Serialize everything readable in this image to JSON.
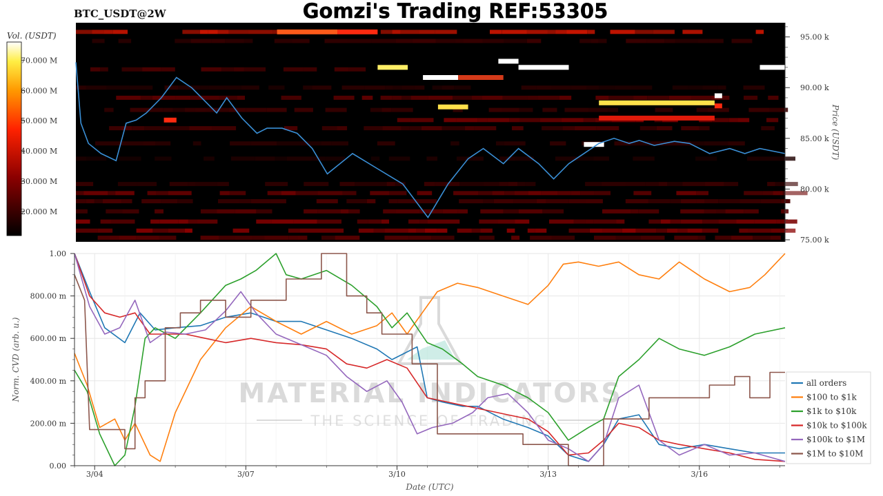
{
  "header": {
    "symbol": "BTC_USDT@2W",
    "title": "Gomzi's Trading REF:53305"
  },
  "watermark": {
    "line1": "MATERIAL INDICATORS",
    "line2": "THE SCIENCE OF TRADING"
  },
  "colors": {
    "heat_bg": "#000000",
    "price_line": "#3a8fd6",
    "all_orders": "#1f77b4",
    "100_1k": "#ff7f0e",
    "1k_10k": "#2ca02c",
    "10k_100k": "#d62728",
    "100k_1m": "#9467bd",
    "1m_10m": "#8c564b"
  },
  "chart_data": [
    {
      "type": "heatmap",
      "title": "Gomzi's Trading REF:53305",
      "ylabel": "Price (USDT)",
      "colorbar_label": "Vol. (USDT)",
      "colorbar_ticks": [
        "70.000 M",
        "60.000 M",
        "50.000 M",
        "40.000 M",
        "30.000 M",
        "20.000 M"
      ],
      "colorbar_values": [
        70,
        60,
        50,
        40,
        30,
        20
      ],
      "colorbar_range": [
        12,
        76
      ],
      "yticks": [
        "95.00 k",
        "90.00 k",
        "85.00 k",
        "80.00 k",
        "75.00 k"
      ],
      "ytick_values": [
        95,
        90,
        85,
        80,
        75
      ],
      "ylim": [
        74.8,
        96.4
      ],
      "x_range_days": [
        0,
        14.1
      ],
      "price_series": {
        "name": "BTC_USDT",
        "x": [
          0,
          0.1,
          0.25,
          0.5,
          0.8,
          1.0,
          1.2,
          1.4,
          1.7,
          2.0,
          2.3,
          2.6,
          2.8,
          3.0,
          3.3,
          3.6,
          3.8,
          4.1,
          4.4,
          4.7,
          5.0,
          5.5,
          6.0,
          6.5,
          7.0,
          7.4,
          7.8,
          8.1,
          8.5,
          8.8,
          9.2,
          9.5,
          9.8,
          10.1,
          10.4,
          10.7,
          11.0,
          11.2,
          11.5,
          11.9,
          12.2,
          12.6,
          13.0,
          13.3,
          13.6,
          14.1
        ],
        "y": [
          92.5,
          86.5,
          84.5,
          83.5,
          82.8,
          86.5,
          86.8,
          87.5,
          89.0,
          91.0,
          90.0,
          88.5,
          87.5,
          89.0,
          87.0,
          85.5,
          86.0,
          86.0,
          85.5,
          84.0,
          81.5,
          83.5,
          82.0,
          80.5,
          77.2,
          80.5,
          83.0,
          84.0,
          82.5,
          84.0,
          82.5,
          81.0,
          82.5,
          83.5,
          84.5,
          85.0,
          84.5,
          84.8,
          84.3,
          84.7,
          84.5,
          83.5,
          84.0,
          83.5,
          84.0,
          83.5
        ]
      }
    },
    {
      "type": "line",
      "xlabel": "Date (UTC)",
      "ylabel": "Norm. CVD (arb. u.)",
      "categories": [
        "3/04",
        "3/07",
        "3/10",
        "3/13",
        "3/16"
      ],
      "category_positions": [
        0.4,
        3.4,
        6.4,
        9.4,
        12.4
      ],
      "xlim": [
        0,
        14.1
      ],
      "ylim": [
        0,
        1
      ],
      "yticks": [
        "1.00",
        "800.00 m",
        "600.00 m",
        "400.00 m",
        "200.00 m",
        "0.00"
      ],
      "ytick_values": [
        1,
        0.8,
        0.6,
        0.4,
        0.2,
        0
      ],
      "grid": true,
      "legend_position": "right",
      "series": [
        {
          "name": "all orders",
          "color_key": "all_orders",
          "x": [
            0,
            0.3,
            0.6,
            1.0,
            1.3,
            1.6,
            2.0,
            2.5,
            3.0,
            3.5,
            4.0,
            4.5,
            5.0,
            5.5,
            6.0,
            6.3,
            6.8,
            7.0,
            7.3,
            7.7,
            8.0,
            8.5,
            9.0,
            9.4,
            9.8,
            10.2,
            10.5,
            10.8,
            11.2,
            11.6,
            12.0,
            12.5,
            13.0,
            13.5,
            14.1
          ],
          "y": [
            1.0,
            0.82,
            0.65,
            0.58,
            0.72,
            0.64,
            0.65,
            0.66,
            0.7,
            0.72,
            0.68,
            0.68,
            0.64,
            0.6,
            0.55,
            0.5,
            0.56,
            0.32,
            0.3,
            0.28,
            0.28,
            0.22,
            0.18,
            0.14,
            0.05,
            0.02,
            0.1,
            0.22,
            0.24,
            0.1,
            0.08,
            0.1,
            0.08,
            0.06,
            0.06
          ]
        },
        {
          "name": "$100 to $1k",
          "color_key": "100_1k",
          "x": [
            0,
            0.25,
            0.5,
            0.8,
            1.0,
            1.2,
            1.5,
            1.7,
            2.0,
            2.5,
            3.0,
            3.5,
            4.0,
            4.5,
            5.0,
            5.5,
            6.0,
            6.3,
            6.6,
            6.9,
            7.2,
            7.6,
            8.0,
            8.5,
            9.0,
            9.4,
            9.7,
            10.0,
            10.4,
            10.8,
            11.2,
            11.6,
            12.0,
            12.5,
            13.0,
            13.4,
            13.7,
            14.1
          ],
          "y": [
            0.53,
            0.38,
            0.18,
            0.22,
            0.12,
            0.2,
            0.05,
            0.02,
            0.25,
            0.5,
            0.65,
            0.75,
            0.68,
            0.62,
            0.68,
            0.62,
            0.66,
            0.72,
            0.62,
            0.72,
            0.82,
            0.86,
            0.84,
            0.8,
            0.76,
            0.85,
            0.95,
            0.96,
            0.94,
            0.96,
            0.9,
            0.88,
            0.96,
            0.88,
            0.82,
            0.84,
            0.9,
            1.0
          ]
        },
        {
          "name": "$1k to $10k",
          "color_key": "1k_10k",
          "x": [
            0,
            0.25,
            0.5,
            0.8,
            1.0,
            1.2,
            1.4,
            1.6,
            2.0,
            2.5,
            3.0,
            3.3,
            3.6,
            4.0,
            4.2,
            4.5,
            5.0,
            5.5,
            6.0,
            6.3,
            6.6,
            7.0,
            7.3,
            7.7,
            8.0,
            8.5,
            9.0,
            9.4,
            9.8,
            10.2,
            10.5,
            10.8,
            11.2,
            11.6,
            12.0,
            12.5,
            13.0,
            13.5,
            14.1
          ],
          "y": [
            0.45,
            0.35,
            0.15,
            0.0,
            0.05,
            0.28,
            0.6,
            0.65,
            0.6,
            0.72,
            0.85,
            0.88,
            0.92,
            1.0,
            0.9,
            0.88,
            0.92,
            0.85,
            0.75,
            0.65,
            0.72,
            0.58,
            0.55,
            0.48,
            0.42,
            0.38,
            0.32,
            0.25,
            0.12,
            0.18,
            0.22,
            0.42,
            0.5,
            0.6,
            0.55,
            0.52,
            0.56,
            0.62,
            0.65
          ]
        },
        {
          "name": "$10k to $100k",
          "color_key": "10k_100k",
          "x": [
            0,
            0.3,
            0.6,
            0.9,
            1.2,
            1.5,
            1.8,
            2.2,
            2.6,
            3.0,
            3.5,
            4.0,
            4.5,
            5.0,
            5.4,
            5.8,
            6.2,
            6.6,
            7.0,
            7.4,
            7.8,
            8.2,
            8.6,
            9.0,
            9.4,
            9.8,
            10.2,
            10.5,
            10.8,
            11.2,
            11.6,
            12.0,
            12.5,
            13.0,
            13.5,
            14.1
          ],
          "y": [
            1.0,
            0.8,
            0.72,
            0.7,
            0.72,
            0.62,
            0.62,
            0.62,
            0.6,
            0.58,
            0.6,
            0.58,
            0.57,
            0.55,
            0.48,
            0.46,
            0.5,
            0.46,
            0.32,
            0.3,
            0.28,
            0.26,
            0.24,
            0.22,
            0.16,
            0.05,
            0.06,
            0.12,
            0.2,
            0.18,
            0.12,
            0.1,
            0.08,
            0.06,
            0.03,
            0.02
          ]
        },
        {
          "name": "$100k to $1M",
          "color_key": "100k_1m",
          "x": [
            0,
            0.3,
            0.6,
            0.9,
            1.2,
            1.5,
            1.8,
            2.2,
            2.6,
            3.0,
            3.3,
            3.6,
            4.0,
            4.5,
            5.0,
            5.4,
            5.8,
            6.2,
            6.5,
            6.8,
            7.1,
            7.5,
            7.9,
            8.2,
            8.6,
            9.0,
            9.4,
            9.8,
            10.2,
            10.5,
            10.8,
            11.2,
            11.6,
            12.0,
            12.5,
            13.0,
            13.5,
            14.1
          ],
          "y": [
            1.0,
            0.75,
            0.62,
            0.65,
            0.78,
            0.58,
            0.63,
            0.62,
            0.64,
            0.73,
            0.82,
            0.72,
            0.62,
            0.57,
            0.52,
            0.42,
            0.35,
            0.4,
            0.3,
            0.15,
            0.18,
            0.2,
            0.25,
            0.32,
            0.34,
            0.25,
            0.12,
            0.08,
            0.02,
            0.1,
            0.32,
            0.38,
            0.12,
            0.05,
            0.1,
            0.05,
            0.06,
            0.02
          ]
        },
        {
          "name": "$1M to $10M",
          "color_key": "1m_10m",
          "x": [
            0,
            0.2,
            0.3,
            1.0,
            1.0,
            1.2,
            1.2,
            1.4,
            1.4,
            1.8,
            1.8,
            2.1,
            2.1,
            2.5,
            2.5,
            3.0,
            3.0,
            3.5,
            3.5,
            4.2,
            4.2,
            4.9,
            4.9,
            5.4,
            5.4,
            5.8,
            5.8,
            6.1,
            6.1,
            6.7,
            6.7,
            7.2,
            7.2,
            8.9,
            8.9,
            9.8,
            9.8,
            10.5,
            10.5,
            11.4,
            11.4,
            12.6,
            12.6,
            13.1,
            13.1,
            13.4,
            13.4,
            13.8,
            13.8,
            14.1
          ],
          "y": [
            0.9,
            0.78,
            0.17,
            0.17,
            0.08,
            0.08,
            0.32,
            0.32,
            0.4,
            0.4,
            0.65,
            0.65,
            0.72,
            0.72,
            0.78,
            0.78,
            0.7,
            0.7,
            0.78,
            0.78,
            0.88,
            0.88,
            1.0,
            1.0,
            0.8,
            0.8,
            0.72,
            0.72,
            0.62,
            0.62,
            0.48,
            0.48,
            0.15,
            0.15,
            0.1,
            0.1,
            0.0,
            0.0,
            0.22,
            0.22,
            0.32,
            0.32,
            0.38,
            0.38,
            0.42,
            0.42,
            0.32,
            0.32,
            0.44,
            0.44
          ]
        }
      ]
    }
  ]
}
